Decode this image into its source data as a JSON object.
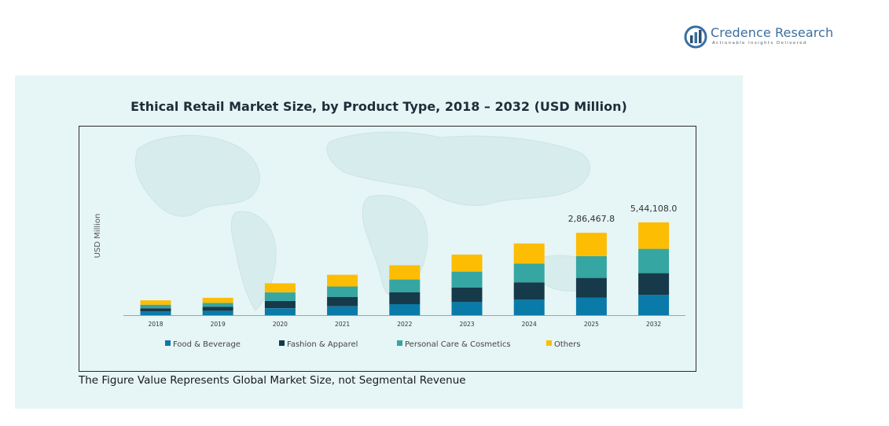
{
  "brand": {
    "name": "Credence Research",
    "tagline": "Actionable Insights Delivered",
    "name_color": "#3a6fa0"
  },
  "footnote": "The Figure Value Represents Global Market Size, not Segmental Revenue",
  "colors": {
    "panel_background": "#e6f5f5",
    "food_beverage": "#0a7aa8",
    "fashion_apparel": "#163a4a",
    "personal_care": "#35a6a2",
    "others": "#fcbd02"
  },
  "chart_data": {
    "type": "bar",
    "stacked": true,
    "title": "Ethical Retail Market Size, by Product Type, 2018 – 2032 (USD Million)",
    "xlabel": "",
    "ylabel": "USD Million",
    "categories": [
      "2018",
      "2019",
      "2020",
      "2021",
      "2022",
      "2023",
      "2024",
      "2025",
      "2032"
    ],
    "ylim": [
      0,
      600000
    ],
    "grid": false,
    "legend_position": "bottom",
    "series": [
      {
        "name": "Food & Beverage",
        "color": "#0a7aa8",
        "values": [
          12000,
          14000,
          22000,
          28000,
          35000,
          42000,
          49000,
          56000,
          64000
        ]
      },
      {
        "name": "Fashion & Apparel",
        "color": "#163a4a",
        "values": [
          10000,
          13000,
          23000,
          30000,
          38000,
          46000,
          55000,
          62000,
          69000
        ]
      },
      {
        "name": "Personal Care & Cosmetics",
        "color": "#35a6a2",
        "values": [
          11000,
          12000,
          27000,
          33000,
          40000,
          50000,
          59000,
          69000,
          77000
        ]
      },
      {
        "name": "Others",
        "color": "#fcbd02",
        "values": [
          14000,
          16000,
          29000,
          37000,
          45000,
          54000,
          64000,
          74000,
          84000
        ]
      }
    ],
    "annotations": [
      {
        "category": "2025",
        "label": "2,86,467.8"
      },
      {
        "category": "2032",
        "label": "5,44,108.0"
      }
    ]
  }
}
